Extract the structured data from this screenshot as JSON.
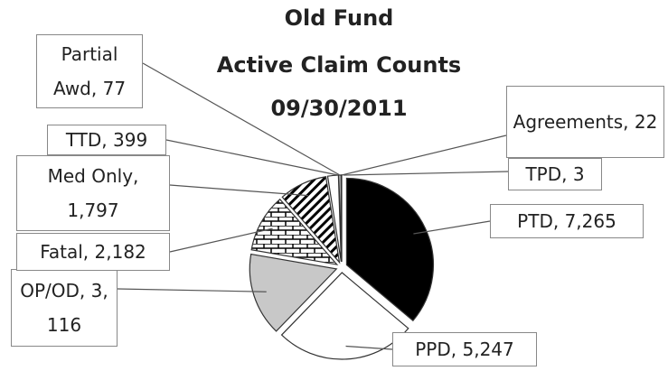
{
  "chart_data": {
    "type": "pie",
    "title": [
      "Old Fund",
      "Active Claim Counts",
      "09/30/2011"
    ],
    "values": [
      7265,
      5247,
      3116,
      2182,
      1797,
      399,
      77,
      22,
      3
    ],
    "value_labels": [
      "PTD, 7,265",
      "PPD, 5,247",
      "OP/OD, 3,116",
      "Fatal, 2,182",
      "Med Only, 1,797",
      "TTD, 399",
      "Partial Awd, 77",
      "Agreements, 22",
      "TPD, 3"
    ],
    "colors": [
      "#000000",
      "#ffffff",
      "#c8c8c8",
      "url(#bricks)",
      "url(#stripes)",
      "#ffffff",
      "#ffffff",
      "#ffffff",
      "#ffffff"
    ]
  }
}
